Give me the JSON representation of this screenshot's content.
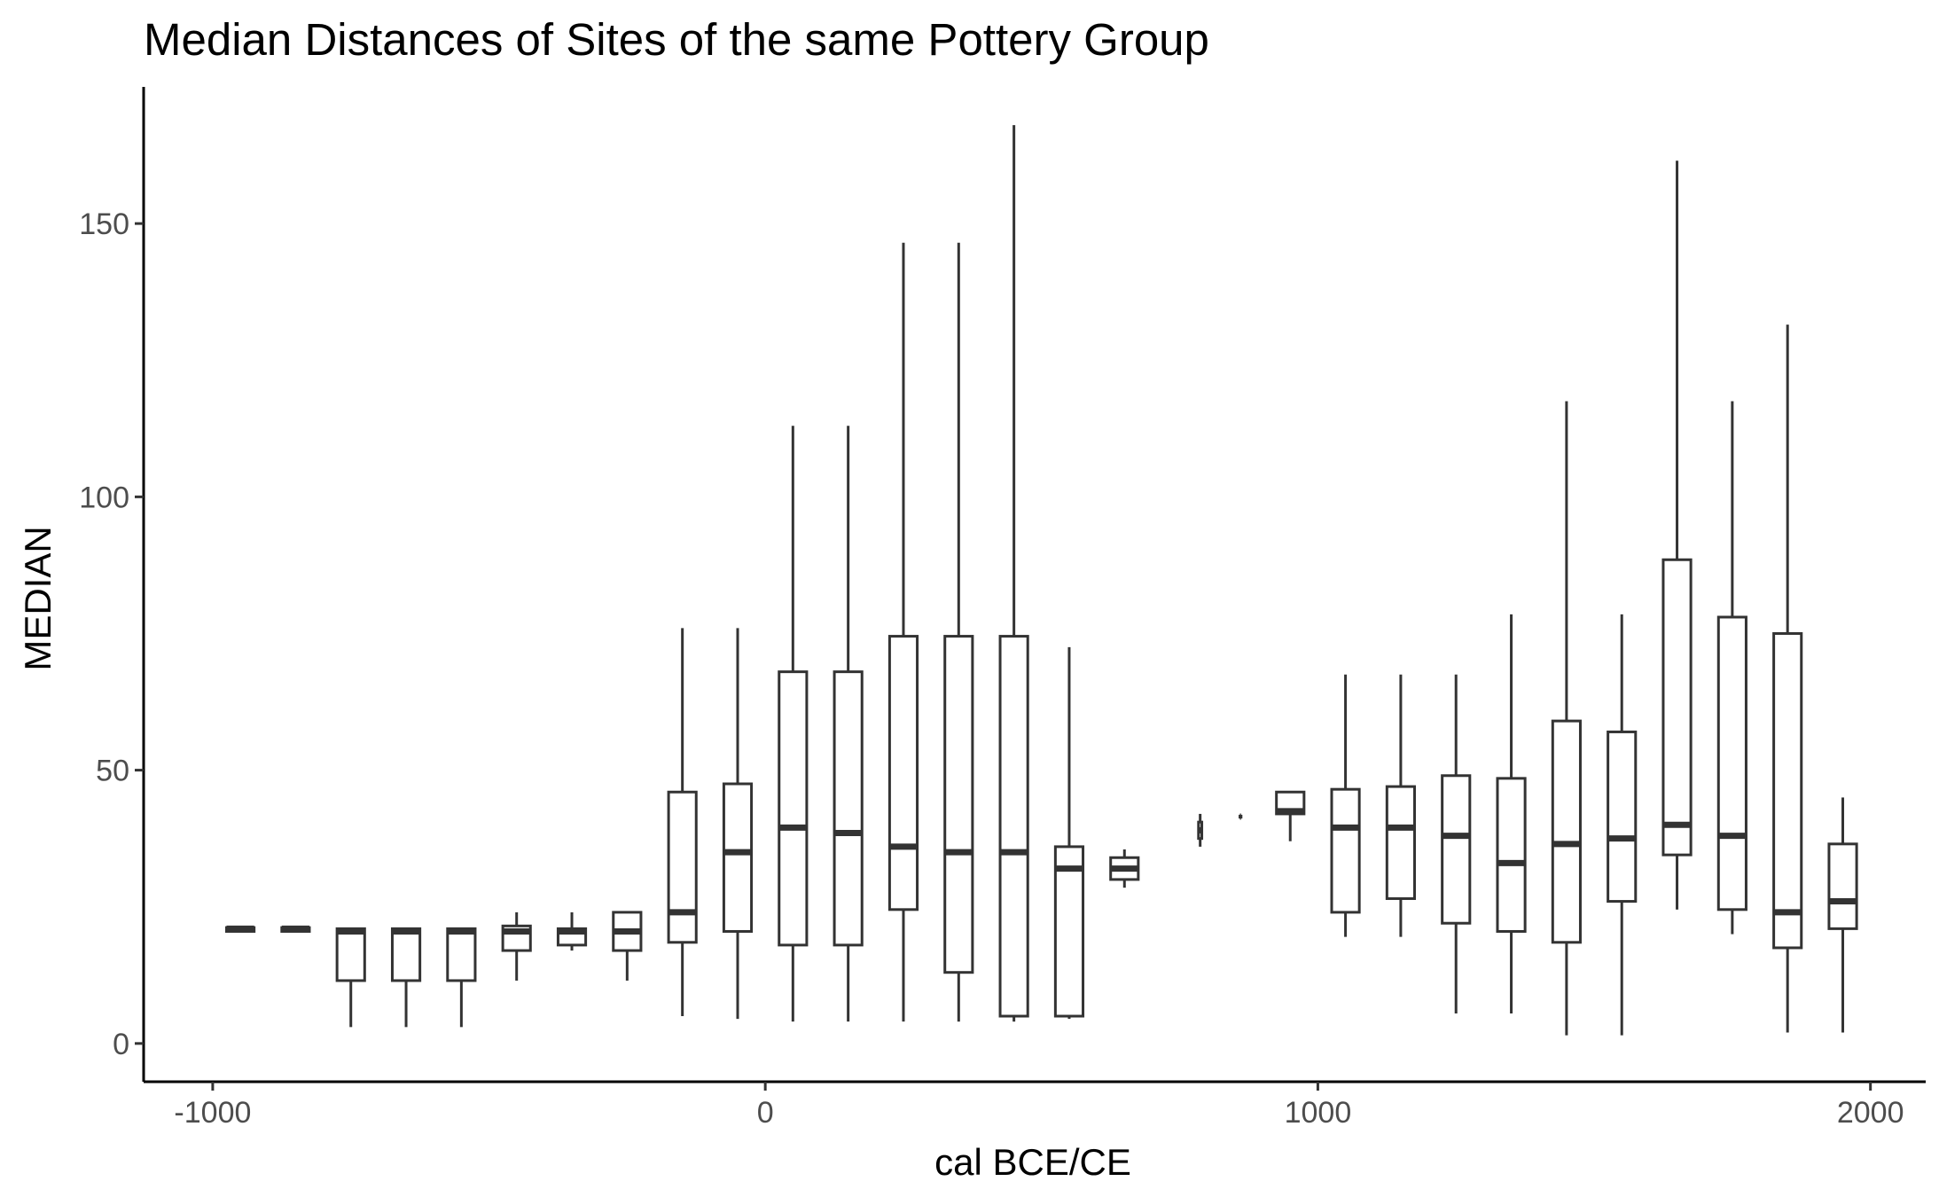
{
  "chart_data": {
    "type": "boxplot",
    "title": "Median Distances of Sites of the same Pottery Group",
    "xlabel": "cal BCE/CE",
    "ylabel": "MEDIAN",
    "xlim": [
      -1125,
      2100
    ],
    "ylim": [
      -7,
      175
    ],
    "x_ticks": [
      -1000,
      0,
      1000,
      2000
    ],
    "y_ticks": [
      0,
      50,
      100,
      150
    ],
    "x_tick_labels": [
      "-1000",
      "0",
      "1000",
      "2000"
    ],
    "y_tick_labels": [
      "0",
      "50",
      "100",
      "150"
    ],
    "grid": false,
    "box_width": 50,
    "boxes": [
      {
        "x": -950,
        "min": 20.5,
        "q1": 20.5,
        "median": 21,
        "q3": 21.2,
        "max": 21.2
      },
      {
        "x": -850,
        "min": 20.5,
        "q1": 20.5,
        "median": 21,
        "q3": 21.2,
        "max": 21.2
      },
      {
        "x": -750,
        "min": 3,
        "q1": 11.5,
        "median": 20.5,
        "q3": 21,
        "max": 21
      },
      {
        "x": -650,
        "min": 3,
        "q1": 11.5,
        "median": 20.5,
        "q3": 21,
        "max": 21
      },
      {
        "x": -550,
        "min": 3,
        "q1": 11.5,
        "median": 20.5,
        "q3": 21,
        "max": 21
      },
      {
        "x": -450,
        "min": 11.5,
        "q1": 17,
        "median": 20.5,
        "q3": 21.5,
        "max": 24
      },
      {
        "x": -350,
        "min": 17,
        "q1": 18,
        "median": 20.5,
        "q3": 21,
        "max": 24
      },
      {
        "x": -250,
        "min": 11.5,
        "q1": 17,
        "median": 20.5,
        "q3": 24,
        "max": 24
      },
      {
        "x": -150,
        "min": 5,
        "q1": 18.5,
        "median": 24,
        "q3": 46,
        "max": 76
      },
      {
        "x": -50,
        "min": 4.5,
        "q1": 20.5,
        "median": 35,
        "q3": 47.5,
        "max": 76
      },
      {
        "x": 50,
        "min": 4,
        "q1": 18,
        "median": 39.5,
        "q3": 68,
        "max": 113
      },
      {
        "x": 150,
        "min": 4,
        "q1": 18,
        "median": 38.5,
        "q3": 68,
        "max": 113
      },
      {
        "x": 250,
        "min": 4,
        "q1": 24.5,
        "median": 36,
        "q3": 74.5,
        "max": 146.5
      },
      {
        "x": 350,
        "min": 4,
        "q1": 13,
        "median": 35,
        "q3": 74.5,
        "max": 146.5
      },
      {
        "x": 450,
        "min": 4,
        "q1": 5,
        "median": 35,
        "q3": 74.5,
        "max": 168
      },
      {
        "x": 550,
        "min": 4.5,
        "q1": 5,
        "median": 32,
        "q3": 36,
        "max": 72.5
      },
      {
        "x": 650,
        "min": 28.5,
        "q1": 30,
        "median": 32,
        "q3": 34,
        "max": 35.5
      },
      {
        "x": 787,
        "min": 36,
        "q1": 37.5,
        "median": 39,
        "q3": 40.5,
        "max": 42,
        "width": 6
      },
      {
        "x": 860,
        "min": 41.2,
        "q1": 41.4,
        "median": 41.5,
        "q3": 41.6,
        "max": 41.8,
        "width": 2
      },
      {
        "x": 950,
        "min": 37,
        "q1": 42,
        "median": 42.5,
        "q3": 46,
        "max": 46
      },
      {
        "x": 1050,
        "min": 19.5,
        "q1": 24,
        "median": 39.5,
        "q3": 46.5,
        "max": 67.5
      },
      {
        "x": 1150,
        "min": 19.5,
        "q1": 26.5,
        "median": 39.5,
        "q3": 47,
        "max": 67.5
      },
      {
        "x": 1250,
        "min": 5.5,
        "q1": 22,
        "median": 38,
        "q3": 49,
        "max": 67.5
      },
      {
        "x": 1350,
        "min": 5.5,
        "q1": 20.5,
        "median": 33,
        "q3": 48.5,
        "max": 78.5
      },
      {
        "x": 1450,
        "min": 1.5,
        "q1": 18.5,
        "median": 36.5,
        "q3": 59,
        "max": 117.5
      },
      {
        "x": 1550,
        "min": 1.5,
        "q1": 26,
        "median": 37.5,
        "q3": 57,
        "max": 78.5
      },
      {
        "x": 1650,
        "min": 24.5,
        "q1": 34.5,
        "median": 40,
        "q3": 88.5,
        "max": 161.5
      },
      {
        "x": 1750,
        "min": 20,
        "q1": 24.5,
        "median": 38,
        "q3": 78,
        "max": 117.5
      },
      {
        "x": 1850,
        "min": 2,
        "q1": 17.5,
        "median": 24,
        "q3": 75,
        "max": 131.5
      },
      {
        "x": 1950,
        "min": 2,
        "q1": 21,
        "median": 26,
        "q3": 36.5,
        "max": 45
      }
    ]
  }
}
